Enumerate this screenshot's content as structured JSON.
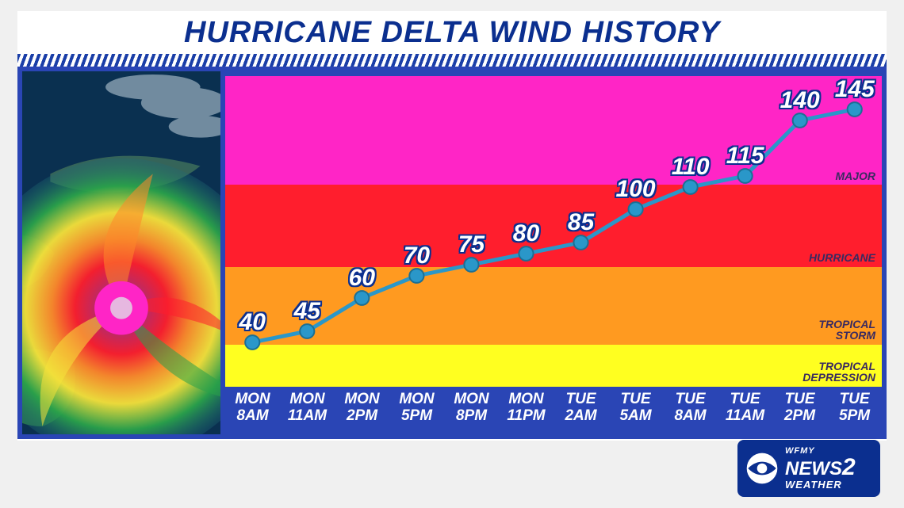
{
  "title": "HURRICANE DELTA WIND HISTORY",
  "chart": {
    "type": "line",
    "ylim": [
      20,
      160
    ],
    "line_color": "#2a97c9",
    "line_width": 5,
    "marker_fill": "#2a97c9",
    "marker_stroke": "#1b6f94",
    "marker_radius": 9,
    "label_color": "#ffffff",
    "label_outline": "#0b2f8f",
    "label_fontsize": 30,
    "bands": [
      {
        "name": "tropical_depression",
        "from": 20,
        "to": 39,
        "color": "#ffff20",
        "label": "TROPICAL\nDEPRESSION"
      },
      {
        "name": "tropical_storm",
        "from": 39,
        "to": 74,
        "color": "#ff9a20",
        "label": "TROPICAL\nSTORM"
      },
      {
        "name": "hurricane",
        "from": 74,
        "to": 111,
        "color": "#ff1e2d",
        "label": "HURRICANE"
      },
      {
        "name": "major",
        "from": 111,
        "to": 160,
        "color": "#ff25c6",
        "label": "MAJOR"
      }
    ],
    "band_label_color": "#3a2a60",
    "band_label_fontsize": 14,
    "xaxis_bg": "#2a45b5",
    "xaxis_text_color": "#ffffff",
    "xaxis_fontsize": 19,
    "points": [
      {
        "day": "MON",
        "time": "8AM",
        "value": 40
      },
      {
        "day": "MON",
        "time": "11AM",
        "value": 45
      },
      {
        "day": "MON",
        "time": "2PM",
        "value": 60
      },
      {
        "day": "MON",
        "time": "5PM",
        "value": 70
      },
      {
        "day": "MON",
        "time": "8PM",
        "value": 75
      },
      {
        "day": "MON",
        "time": "11PM",
        "value": 80
      },
      {
        "day": "TUE",
        "time": "2AM",
        "value": 85
      },
      {
        "day": "TUE",
        "time": "5AM",
        "value": 100
      },
      {
        "day": "TUE",
        "time": "8AM",
        "value": 110
      },
      {
        "day": "TUE",
        "time": "11AM",
        "value": 115
      },
      {
        "day": "TUE",
        "time": "2PM",
        "value": 140
      },
      {
        "day": "TUE",
        "time": "5PM",
        "value": 145
      }
    ]
  },
  "panel_border_color": "#2a45b5",
  "title_color": "#0b2f8f",
  "hatch_colors": {
    "fg": "#1a3ea8",
    "bg": "#ffffff"
  },
  "logo": {
    "bg": "#0b2f8f",
    "text_color": "#ffffff",
    "line1": "WFMY",
    "line2_a": "NEWS",
    "line2_b": "2",
    "line3": "WEATHER"
  },
  "satellite": {
    "ocean": "#0a3050",
    "land1": "#2a7a4a",
    "land2": "#4a6a5a",
    "storm_colors": [
      "#1a4a8a",
      "#2aa24a",
      "#f6e23a",
      "#ff8a2a",
      "#ff1e2d",
      "#c02a6a",
      "#ff25c6"
    ]
  },
  "body_bg": "#f0f0f0"
}
